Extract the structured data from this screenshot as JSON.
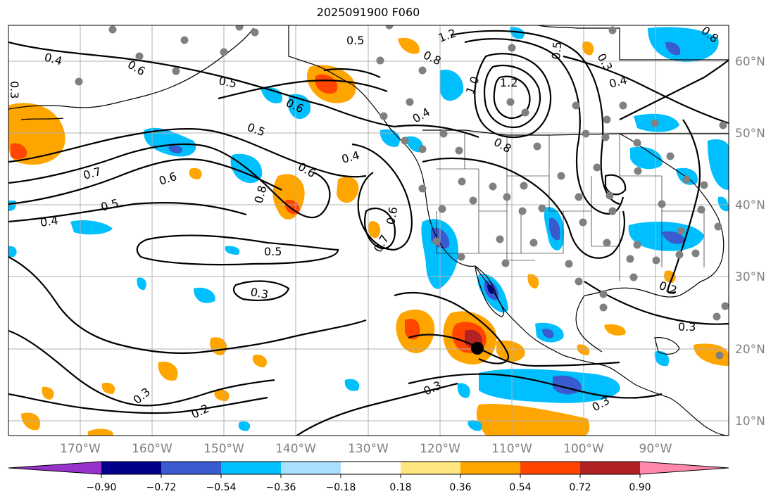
{
  "title": "2025091900 F060",
  "map": {
    "lon_labels": [
      "170°W",
      "160°W",
      "150°W",
      "140°W",
      "130°W",
      "120°W",
      "110°W",
      "100°W",
      "90°W"
    ],
    "lat_labels": [
      "60°N",
      "50°N",
      "40°N",
      "30°N",
      "20°N",
      "10°N"
    ],
    "contour_labels": [
      "0.4",
      "0.5",
      "0.6",
      "0.7",
      "0.8",
      "0.5",
      "0.6",
      "0.5",
      "0.6",
      "0.4",
      "0.3",
      "0.3",
      "0.2",
      "0.3",
      "0.3",
      "0.2",
      "0.3",
      "0.4",
      "0.5",
      "0.6",
      "0.7",
      "0.8",
      "1.0",
      "1.2",
      "1.2",
      "0.8",
      "0.6",
      "0.5",
      "0.3",
      "0.4",
      "0.4",
      "0.5",
      "0.3",
      "0.8"
    ],
    "gridline_color": "#b0b0b0",
    "contour_color": "#000000",
    "station_dot_color": "#808080",
    "storm_marker": "black-dot"
  },
  "colorbar": {
    "ticks": [
      "−0.90",
      "−0.72",
      "−0.54",
      "−0.36",
      "−0.18",
      "0.18",
      "0.36",
      "0.54",
      "0.72",
      "0.90"
    ],
    "colors": [
      "#9932cc",
      "#00008b",
      "#3a5bd0",
      "#00bfff",
      "#aadfff",
      "#ffffff",
      "#ffe680",
      "#ffa500",
      "#ff4500",
      "#b22222",
      "#ff88aa"
    ]
  }
}
